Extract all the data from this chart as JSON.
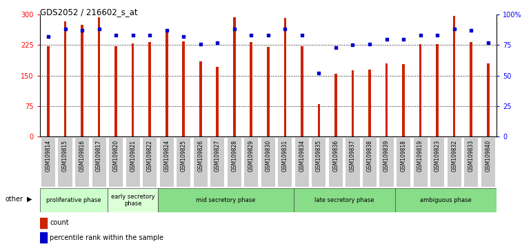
{
  "title": "GDS2052 / 216602_s_at",
  "samples": [
    "GSM109814",
    "GSM109815",
    "GSM109816",
    "GSM109817",
    "GSM109820",
    "GSM109821",
    "GSM109822",
    "GSM109824",
    "GSM109825",
    "GSM109826",
    "GSM109827",
    "GSM109828",
    "GSM109829",
    "GSM109830",
    "GSM109831",
    "GSM109834",
    "GSM109835",
    "GSM109836",
    "GSM109837",
    "GSM109838",
    "GSM109839",
    "GSM109818",
    "GSM109819",
    "GSM109823",
    "GSM109832",
    "GSM109833",
    "GSM109840"
  ],
  "counts": [
    222,
    283,
    275,
    293,
    222,
    230,
    232,
    258,
    235,
    185,
    172,
    293,
    232,
    220,
    292,
    222,
    80,
    155,
    163,
    165,
    180,
    178,
    228,
    228,
    297,
    232,
    180
  ],
  "percentile": [
    82,
    88,
    87,
    88,
    83,
    83,
    83,
    87,
    82,
    76,
    77,
    88,
    83,
    83,
    88,
    83,
    52,
    73,
    75,
    76,
    80,
    80,
    83,
    83,
    88,
    87,
    77
  ],
  "phases": [
    {
      "label": "proliferative phase",
      "start": 0,
      "end": 4,
      "color": "#ccffcc"
    },
    {
      "label": "early secretory\nphase",
      "start": 4,
      "end": 7,
      "color": "#ddffd8"
    },
    {
      "label": "mid secretory phase",
      "start": 7,
      "end": 15,
      "color": "#88dd88"
    },
    {
      "label": "late secretory phase",
      "start": 15,
      "end": 21,
      "color": "#88dd88"
    },
    {
      "label": "ambiguous phase",
      "start": 21,
      "end": 27,
      "color": "#88dd88"
    }
  ],
  "bar_color": "#cc2200",
  "dot_color": "#0000cc",
  "bg_color": "#ffffff",
  "ylim_left": [
    0,
    300
  ],
  "ylim_right": [
    0,
    100
  ],
  "yticks_left": [
    0,
    75,
    150,
    225,
    300
  ],
  "yticks_right": [
    0,
    25,
    50,
    75,
    100
  ],
  "ytick_labels_left": [
    "0",
    "75",
    "150",
    "225",
    "300"
  ],
  "ytick_labels_right": [
    "0",
    "25",
    "50",
    "75",
    "100%"
  ],
  "grid_lines": [
    75,
    150,
    225
  ],
  "bar_width": 0.15
}
